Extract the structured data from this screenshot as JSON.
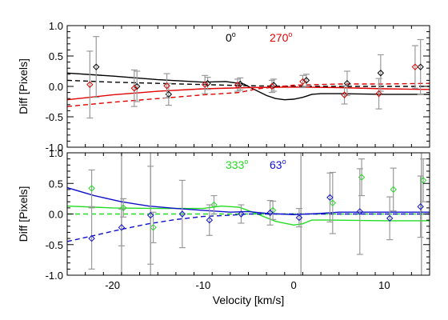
{
  "chart_data": [
    {
      "type": "scatter",
      "panel": "top",
      "xlabel": "",
      "ylabel": "Diff [Pixels]",
      "xlim": [
        -25,
        15
      ],
      "ylim": [
        -1.0,
        1.0
      ],
      "xticks": [
        -20,
        -10,
        0,
        10
      ],
      "yticks": [
        -1.0,
        -0.5,
        0.0,
        0.5,
        1.0
      ],
      "ytick_labels": [
        "-1.0",
        "-0.5",
        "0.0",
        "0.5",
        "1.0"
      ],
      "xtick_labels": [],
      "legend": [
        {
          "label": "0",
          "sup": "o",
          "color": "#000000"
        },
        {
          "label": "270",
          "sup": "o",
          "color": "#e00000"
        }
      ],
      "series": [
        {
          "name": "0",
          "color": "#000000",
          "kind": "points",
          "points": [
            [
              -21.8,
              0.32,
              0.5
            ],
            [
              -17.3,
              0.0,
              0.25
            ],
            [
              -13.8,
              -0.13,
              0.18
            ],
            [
              -9.5,
              0.05,
              0.1
            ],
            [
              -5.9,
              0.04,
              0.1
            ],
            [
              -2.2,
              0.02,
              0.1
            ],
            [
              1.4,
              0.1,
              0.1
            ],
            [
              5.9,
              0.05,
              0.2
            ],
            [
              9.6,
              0.22,
              0.3
            ],
            [
              14.0,
              0.32,
              0.45
            ]
          ]
        },
        {
          "name": "270",
          "color": "#e00000",
          "kind": "points",
          "points": [
            [
              -22.5,
              0.03,
              0.55
            ],
            [
              -17.6,
              -0.03,
              0.3
            ],
            [
              -14.0,
              0.01,
              0.2
            ],
            [
              -9.8,
              0.03,
              0.15
            ],
            [
              -6.2,
              0.02,
              0.1
            ],
            [
              -2.4,
              0.0,
              0.1
            ],
            [
              1.0,
              0.08,
              0.1
            ],
            [
              5.6,
              -0.14,
              0.15
            ],
            [
              9.4,
              -0.12,
              0.25
            ],
            [
              13.4,
              0.32,
              0.35
            ]
          ]
        },
        {
          "name": "0",
          "color": "#000000",
          "kind": "solid",
          "curve": [
            [
              -25,
              0.22
            ],
            [
              -20,
              0.17
            ],
            [
              -15,
              0.11
            ],
            [
              -10,
              0.07
            ],
            [
              -7.5,
              0.08
            ],
            [
              -5.5,
              0.04
            ],
            [
              -4.5,
              -0.04
            ],
            [
              -3,
              -0.15
            ],
            [
              -2,
              -0.2
            ],
            [
              -1,
              -0.22
            ],
            [
              0,
              -0.21
            ],
            [
              1,
              -0.18
            ],
            [
              2,
              -0.13
            ],
            [
              3,
              -0.12
            ],
            [
              5,
              -0.12
            ],
            [
              10,
              -0.13
            ],
            [
              15,
              -0.13
            ]
          ]
        },
        {
          "name": "0",
          "color": "#000000",
          "kind": "dashed",
          "curve": [
            [
              -25,
              0.1
            ],
            [
              -20,
              0.07
            ],
            [
              -15,
              0.05
            ],
            [
              -10,
              0.03
            ],
            [
              -5,
              0.01
            ],
            [
              0,
              0.0
            ],
            [
              5,
              0.0
            ],
            [
              10,
              0.0
            ],
            [
              15,
              0.0
            ]
          ]
        },
        {
          "name": "270",
          "color": "#e00000",
          "kind": "solid",
          "curve": [
            [
              -25,
              -0.22
            ],
            [
              -20,
              -0.14
            ],
            [
              -15,
              -0.08
            ],
            [
              -10,
              -0.04
            ],
            [
              -5,
              -0.02
            ],
            [
              0,
              -0.01
            ],
            [
              5,
              -0.02
            ],
            [
              10,
              -0.04
            ],
            [
              15,
              -0.05
            ]
          ]
        },
        {
          "name": "270",
          "color": "#e00000",
          "kind": "dashed",
          "curve": [
            [
              -25,
              -0.33
            ],
            [
              -20,
              -0.26
            ],
            [
              -15,
              -0.2
            ],
            [
              -10,
              -0.14
            ],
            [
              -6,
              -0.1
            ],
            [
              -4,
              -0.04
            ],
            [
              0,
              0.02
            ],
            [
              5,
              0.04
            ],
            [
              10,
              0.04
            ],
            [
              15,
              0.05
            ]
          ]
        }
      ]
    },
    {
      "type": "scatter",
      "panel": "bottom",
      "xlabel": "Velocity [km/s]",
      "ylabel": "Diff [Pixels]",
      "xlim": [
        -25,
        15
      ],
      "ylim": [
        -1.0,
        1.0
      ],
      "xticks": [
        -20,
        -10,
        0,
        10
      ],
      "xtick_labels": [
        "-20",
        "-10",
        "0",
        "10"
      ],
      "yticks": [
        -1.0,
        -0.5,
        0.0,
        0.5,
        1.0
      ],
      "ytick_labels": [
        "-1.0",
        "-0.5",
        "0.0",
        "0.5",
        "1.0"
      ],
      "legend": [
        {
          "label": "333",
          "sup": "o",
          "color": "#22dd22"
        },
        {
          "label": "63",
          "sup": "o",
          "color": "#1010cc"
        }
      ],
      "vlines": [
        -19.0,
        -15.8,
        0.8,
        14.1
      ],
      "series": [
        {
          "name": "333",
          "color": "#22dd22",
          "kind": "points",
          "points": [
            [
              -22.3,
              0.42,
              0.3
            ],
            [
              -18.8,
              0.1,
              0.15
            ],
            [
              -15.5,
              -0.22,
              0.25
            ],
            [
              -8.8,
              0.15,
              0.15
            ],
            [
              -2.3,
              0.06,
              0.15
            ],
            [
              4.3,
              0.18,
              0.5
            ],
            [
              7.5,
              0.6,
              0.3
            ],
            [
              11.0,
              0.4,
              0.35
            ],
            [
              14.3,
              0.55,
              0.35
            ]
          ]
        },
        {
          "name": "63",
          "color": "#1010cc",
          "kind": "points",
          "points": [
            [
              -22.3,
              -0.4,
              0.5
            ],
            [
              -19.0,
              -0.22,
              0.3
            ],
            [
              -15.8,
              -0.02,
              0.8
            ],
            [
              -12.3,
              0.0,
              0.55
            ],
            [
              -9.3,
              -0.1,
              0.25
            ],
            [
              -5.8,
              0.0,
              0.15
            ],
            [
              -2.6,
              0.02,
              0.2
            ],
            [
              0.6,
              -0.06,
              0.15
            ],
            [
              4.0,
              0.27,
              0.4
            ],
            [
              7.3,
              0.04,
              0.7
            ],
            [
              10.6,
              -0.07,
              0.35
            ],
            [
              14.0,
              0.12,
              0.5
            ]
          ]
        },
        {
          "name": "333",
          "color": "#22dd22",
          "kind": "solid",
          "curve": [
            [
              -25,
              0.13
            ],
            [
              -20,
              0.1
            ],
            [
              -15,
              0.09
            ],
            [
              -10,
              0.09
            ],
            [
              -8,
              0.13
            ],
            [
              -6,
              0.11
            ],
            [
              -4,
              0.0
            ],
            [
              -2,
              -0.12
            ],
            [
              0,
              -0.18
            ],
            [
              1,
              -0.16
            ],
            [
              2,
              -0.1
            ],
            [
              4,
              -0.1
            ],
            [
              10,
              -0.11
            ],
            [
              15,
              -0.11
            ]
          ]
        },
        {
          "name": "333",
          "color": "#22dd22",
          "kind": "dashed",
          "curve": [
            [
              -25,
              0.0
            ],
            [
              -20,
              0.0
            ],
            [
              -15,
              0.0
            ],
            [
              -10,
              0.0
            ],
            [
              -5,
              0.0
            ],
            [
              0,
              0.0
            ],
            [
              5,
              0.0
            ],
            [
              10,
              0.0
            ],
            [
              15,
              0.0
            ]
          ]
        },
        {
          "name": "63",
          "color": "#1010cc",
          "kind": "solid",
          "curve": [
            [
              -25,
              0.43
            ],
            [
              -22,
              0.3
            ],
            [
              -19,
              0.2
            ],
            [
              -16,
              0.13
            ],
            [
              -13,
              0.09
            ],
            [
              -10,
              0.06
            ],
            [
              -7,
              0.03
            ],
            [
              -5,
              0.04
            ],
            [
              -3,
              0.01
            ],
            [
              0,
              -0.01
            ],
            [
              3,
              0.01
            ],
            [
              5,
              0.03
            ],
            [
              10,
              0.03
            ],
            [
              15,
              0.03
            ]
          ]
        },
        {
          "name": "63",
          "color": "#1010cc",
          "kind": "dashed",
          "curve": [
            [
              -25,
              -0.45
            ],
            [
              -22,
              -0.35
            ],
            [
              -19,
              -0.25
            ],
            [
              -16,
              -0.16
            ],
            [
              -13,
              -0.09
            ],
            [
              -10,
              -0.04
            ],
            [
              -7,
              -0.02
            ],
            [
              -5,
              0.0
            ],
            [
              -3,
              0.0
            ],
            [
              0,
              0.0
            ],
            [
              5,
              0.0
            ],
            [
              10,
              0.0
            ],
            [
              15,
              0.0
            ]
          ]
        }
      ]
    }
  ]
}
